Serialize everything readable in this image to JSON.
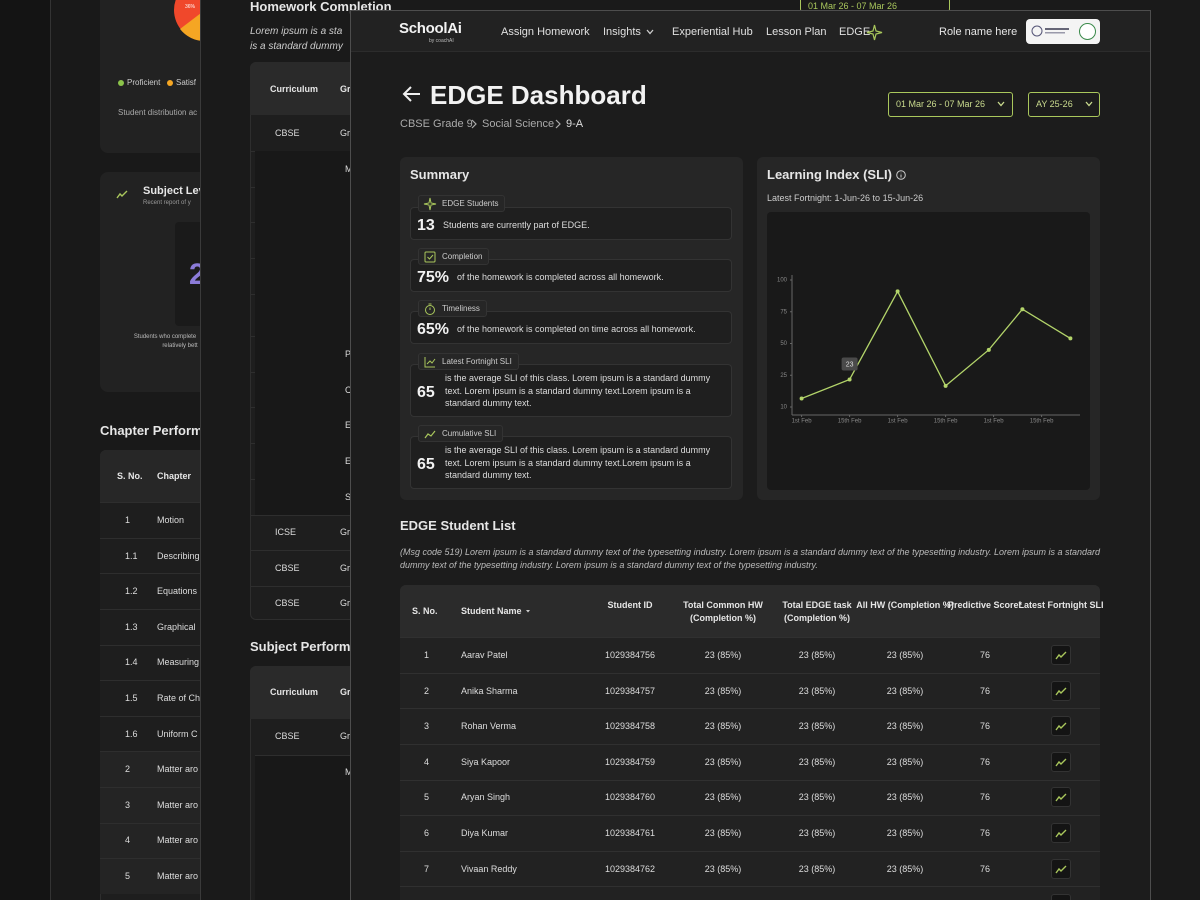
{
  "back": {
    "pie_label": "36%",
    "legend": [
      "Proficient",
      "Satisf"
    ],
    "caption": "Student distribution ac",
    "card_title": "Subject Lev",
    "card_sub": "Recent report of y",
    "big_number": "2",
    "note": [
      "Students who complete",
      "relatively bett"
    ],
    "section_title": "Chapter Perform",
    "table_header": [
      "S. No.",
      "Chapter"
    ],
    "rows": [
      [
        "1",
        "Motion"
      ],
      [
        "1.1",
        "Describing"
      ],
      [
        "1.2",
        "Equations"
      ],
      [
        "1.3",
        "Graphical"
      ],
      [
        "1.4",
        "Measuring"
      ],
      [
        "1.5",
        "Rate of Ch"
      ],
      [
        "1.6",
        "Uniform C"
      ],
      [
        "2",
        "Matter aro"
      ],
      [
        "3",
        "Matter aro"
      ],
      [
        "4",
        "Matter aro"
      ],
      [
        "5",
        "Matter aro"
      ]
    ]
  },
  "middle": {
    "title": "Homework Completion",
    "desc": [
      "Lorem ipsum is a sta",
      "is a standard dummy"
    ],
    "date": "01 Mar 26 - 07 Mar 26",
    "table_header": [
      "Curriculum",
      "Gr"
    ],
    "rows": [
      [
        "CBSE",
        "Gr"
      ],
      [
        "M"
      ],
      [
        "P"
      ],
      [
        "C"
      ],
      [
        "E"
      ],
      [
        "E"
      ],
      [
        "S"
      ],
      [
        "ICSE",
        "Gr"
      ],
      [
        "CBSE",
        "Gr"
      ],
      [
        "CBSE",
        "Gr"
      ]
    ],
    "section_title": "Subject Perform",
    "table2_header": [
      "Curriculum",
      "Gr"
    ],
    "rows2": [
      [
        "CBSE",
        "Gr"
      ],
      [
        "M"
      ]
    ]
  },
  "nav": {
    "logo": "SchoolAi",
    "logo_sub": "by coachAI",
    "items": [
      "Assign Homework",
      "Insights",
      "Experiential Hub",
      "Lesson Plan",
      "EDGE"
    ],
    "role": "Role name here"
  },
  "header": {
    "title": "EDGE Dashboard",
    "breadcrumb": [
      "CBSE Grade 9",
      "Social Science",
      "9-A"
    ],
    "date_range": "01 Mar 26 - 07 Mar 26",
    "year": "AY 25-26"
  },
  "summary": {
    "title": "Summary",
    "items": [
      {
        "label": "EDGE Students",
        "value": "13",
        "text": "Students are currently part of EDGE."
      },
      {
        "label": "Completion",
        "value": "75%",
        "text": "of the homework is completed across all homework."
      },
      {
        "label": "Timeliness",
        "value": "65%",
        "text": "of the homework is completed on time across all homework."
      },
      {
        "label": "Latest Fortnight SLI",
        "value": "65",
        "text": "is the average SLI of this class. Lorem ipsum is a standard dummy text. Lorem ipsum is a standard dummy text.Lorem ipsum is a standard dummy text."
      },
      {
        "label": "Cumulative SLI",
        "value": "65",
        "text": "is the average SLI of this class. Lorem ipsum is a standard dummy text. Lorem ipsum is a standard dummy text.Lorem ipsum is a standard dummy text."
      }
    ]
  },
  "chart_data": {
    "type": "line",
    "title": "Learning Index (SLI)",
    "subtitle": "Latest Fortnight: 1-Jun-26 to 15-Jun-26",
    "x": [
      0,
      1,
      2,
      3,
      3.9,
      4.6,
      5.6
    ],
    "series": [
      {
        "name": "SLI",
        "color": "#b3d46a",
        "values": [
          14,
          23,
          91,
          20,
          45,
          77,
          54
        ]
      }
    ],
    "xlim": [
      -0.2,
      5.8
    ],
    "xticks": [
      {
        "value": 0,
        "label": "1st Feb"
      },
      {
        "value": 1,
        "label": "15th Feb"
      },
      {
        "value": 2,
        "label": "1st Feb"
      },
      {
        "value": 3,
        "label": "15th Feb"
      },
      {
        "value": 4,
        "label": "1st Feb"
      },
      {
        "value": 5,
        "label": "15th Feb"
      }
    ],
    "ylim": [
      10,
      100
    ],
    "yticks": [
      10,
      25,
      50,
      75,
      100
    ],
    "grid": false
  },
  "student_list": {
    "title": "EDGE Student List",
    "desc": "(Msg code 519) Lorem ipsum is a standard dummy text of the typesetting industry. Lorem ipsum is a standard dummy text of the typesetting industry. Lorem ipsum is a standard dummy text of the typesetting industry. Lorem ipsum is a standard dummy text of the typesetting industry.",
    "columns": [
      "S. No.",
      "Student Name",
      "Student ID",
      "Total Common HW (Completion %)",
      "Total EDGE task (Completion %)",
      "All HW (Completion %)",
      "Predictive Score*",
      "Latest Fortnight SLI"
    ],
    "rows": [
      [
        "1",
        "Aarav Patel",
        "1029384756",
        "23 (85%)",
        "23 (85%)",
        "23 (85%)",
        "76"
      ],
      [
        "2",
        "Anika Sharma",
        "1029384757",
        "23 (85%)",
        "23 (85%)",
        "23 (85%)",
        "76"
      ],
      [
        "3",
        "Rohan Verma",
        "1029384758",
        "23 (85%)",
        "23 (85%)",
        "23 (85%)",
        "76"
      ],
      [
        "4",
        "Siya Kapoor",
        "1029384759",
        "23 (85%)",
        "23 (85%)",
        "23 (85%)",
        "76"
      ],
      [
        "5",
        "Aryan Singh",
        "1029384760",
        "23 (85%)",
        "23 (85%)",
        "23 (85%)",
        "76"
      ],
      [
        "6",
        "Diya Kumar",
        "1029384761",
        "23 (85%)",
        "23 (85%)",
        "23 (85%)",
        "76"
      ],
      [
        "7",
        "Vivaan Reddy",
        "1029384762",
        "23 (85%)",
        "23 (85%)",
        "23 (85%)",
        "76"
      ]
    ]
  }
}
